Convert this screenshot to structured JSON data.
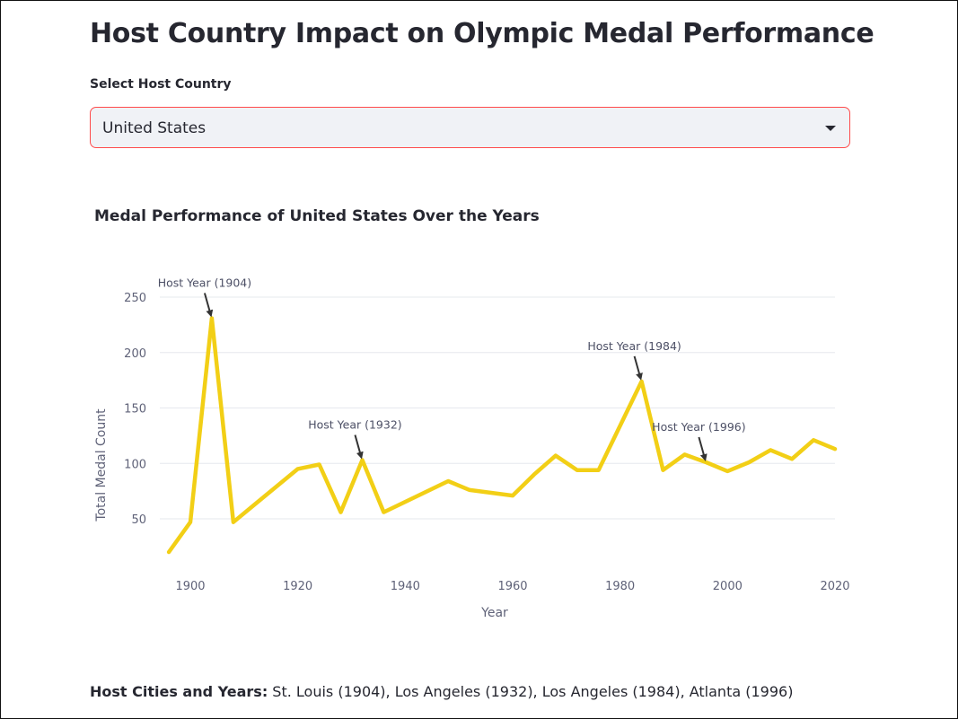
{
  "page": {
    "title": "Host Country Impact on Olympic Medal Performance"
  },
  "selector": {
    "label": "Select Host Country",
    "value": "United States",
    "caret_icon": "chevron-down-icon",
    "border_color": "#ff4b4b",
    "background": "#f0f2f6"
  },
  "chart_data": {
    "type": "line",
    "title": "Medal Performance of United States Over the Years",
    "xlabel": "Year",
    "ylabel": "Total Medal Count",
    "x_ticks": [
      1900,
      1920,
      1940,
      1960,
      1980,
      2000,
      2020
    ],
    "y_ticks": [
      50,
      100,
      150,
      200,
      250
    ],
    "xlim": [
      1896,
      2020
    ],
    "ylim": [
      15,
      258
    ],
    "grid": "horizontal",
    "line_color": "#f2cf16",
    "series": [
      {
        "x": [
          1896,
          1900,
          1904,
          1908,
          1912,
          1920,
          1924,
          1928,
          1932,
          1936,
          1948,
          1952,
          1960,
          1964,
          1968,
          1972,
          1976,
          1984,
          1988,
          1992,
          1996,
          2000,
          2004,
          2008,
          2012,
          2016,
          2020
        ],
        "y": [
          20,
          47,
          231,
          47,
          63,
          95,
          99,
          56,
          103,
          56,
          84,
          76,
          71,
          90,
          107,
          94,
          94,
          174,
          94,
          108,
          101,
          93,
          101,
          112,
          104,
          121,
          113
        ]
      }
    ],
    "annotations": [
      {
        "text": "Host Year (1904)",
        "x": 1904,
        "y": 231
      },
      {
        "text": "Host Year (1932)",
        "x": 1932,
        "y": 103
      },
      {
        "text": "Host Year (1984)",
        "x": 1984,
        "y": 174
      },
      {
        "text": "Host Year (1996)",
        "x": 1996,
        "y": 101
      }
    ]
  },
  "footer": {
    "label": "Host Cities and Years:",
    "text": " St. Louis (1904), Los Angeles (1932), Los Angeles (1984), Atlanta (1996)"
  }
}
